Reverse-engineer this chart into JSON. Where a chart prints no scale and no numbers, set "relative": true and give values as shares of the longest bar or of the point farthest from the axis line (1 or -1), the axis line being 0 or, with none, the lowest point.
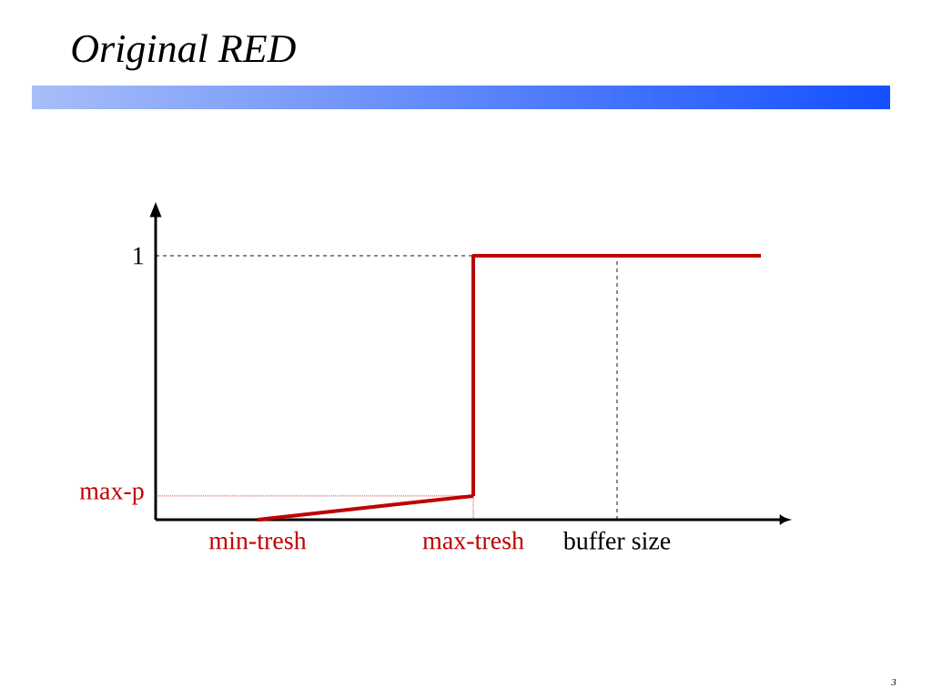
{
  "chart_data": {
    "type": "line",
    "title": "Original RED",
    "relative": true,
    "categories": [
      "min-tresh",
      null,
      null,
      "max-tresh",
      null,
      "buffer size",
      null,
      null
    ],
    "series": [
      {
        "color": "#c00000",
        "values": [
          0,
          0.03,
          0.06,
          0.09,
          null,
          null,
          null,
          null
        ]
      },
      {
        "type": "step",
        "color": "#c00000",
        "values": [
          null,
          null,
          null,
          0.09,
          1,
          1,
          1,
          1
        ]
      }
    ],
    "ref_lines": [
      {
        "axis": "y",
        "value": 1,
        "label": "1",
        "color": "#000000",
        "line_style": "dashed"
      },
      {
        "axis": "y",
        "value": 0.09,
        "label": "max-p",
        "color": "#c00000",
        "line_style": "dotted"
      },
      {
        "axis": "x",
        "value": "max-tresh",
        "color": "#c00000",
        "line_style": "dotted"
      },
      {
        "axis": "x",
        "value": "buffer size",
        "color": "#000000",
        "line_style": "dashed"
      }
    ],
    "annotations": [
      "3"
    ],
    "line_style": "solid"
  }
}
